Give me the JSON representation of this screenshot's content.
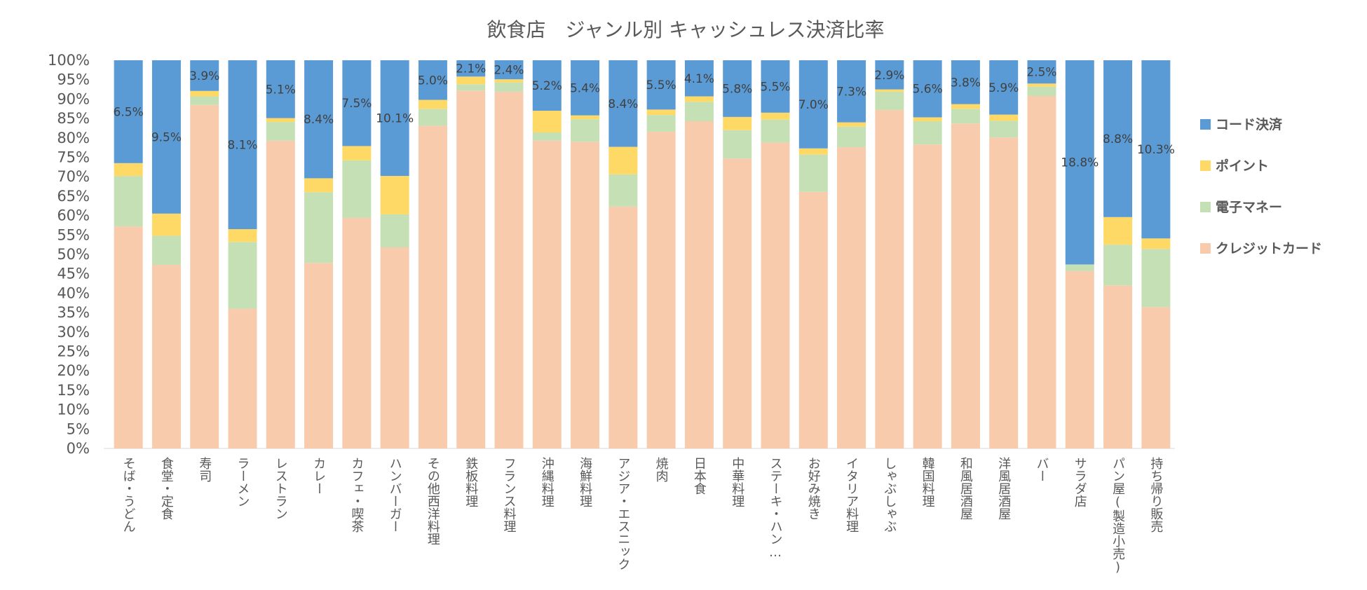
{
  "chart_data": {
    "type": "bar",
    "stacked": true,
    "percent_stacked": true,
    "title": "飲食店　ジャンル別 キャッシュレス決済比率",
    "xlabel": "",
    "ylabel": "",
    "ylim": [
      0,
      100
    ],
    "y_ticks": [
      "0%",
      "5%",
      "10%",
      "15%",
      "20%",
      "25%",
      "30%",
      "35%",
      "40%",
      "45%",
      "50%",
      "55%",
      "60%",
      "65%",
      "70%",
      "75%",
      "80%",
      "85%",
      "90%",
      "95%",
      "100%"
    ],
    "legend_position": "right",
    "categories": [
      "そば・うどん",
      "食堂・定食",
      "寿司",
      "ラーメン",
      "レストラン",
      "カレー",
      "カフェ・喫茶",
      "ハンバーガー",
      "その他西洋料理",
      "鉄板料理",
      "フランス料理",
      "沖縄料理",
      "海鮮料理",
      "アジア・エスニック",
      "焼肉",
      "日本食",
      "中華料理",
      "ステーキ・ハン…",
      "お好み焼き",
      "イタリア料理",
      "しゃぶしゃぶ",
      "韓国料理",
      "和風居酒屋",
      "洋風居酒屋",
      "バー",
      "サラダ店",
      "パン屋(製造小売)",
      "持ち帰り販売"
    ],
    "series": [
      {
        "name": "クレジットカード",
        "color": "#f8cbad",
        "values": [
          57.2,
          47.3,
          88.5,
          36.0,
          79.3,
          47.8,
          59.4,
          51.8,
          83.1,
          92.2,
          91.9,
          79.3,
          79.0,
          62.3,
          81.6,
          84.3,
          74.7,
          78.8,
          66.1,
          77.6,
          87.2,
          78.3,
          83.7,
          80.1,
          90.8,
          45.7,
          42.0,
          36.4
        ]
      },
      {
        "name": "電子マネー",
        "color": "#c5e0b4",
        "values": [
          13.0,
          7.5,
          2.2,
          17.2,
          4.8,
          18.2,
          14.8,
          8.5,
          4.4,
          1.6,
          2.4,
          2.1,
          5.8,
          8.3,
          4.3,
          5.0,
          7.3,
          5.9,
          9.6,
          5.3,
          4.7,
          6.0,
          3.8,
          4.3,
          2.4,
          1.7,
          10.5,
          15.0
        ]
      },
      {
        "name": "ポイント",
        "color": "#ffd966",
        "values": [
          3.3,
          5.7,
          1.4,
          3.3,
          1.0,
          3.6,
          3.7,
          9.9,
          2.3,
          2.0,
          0.8,
          5.6,
          1.0,
          7.1,
          1.4,
          1.4,
          3.4,
          1.8,
          1.6,
          1.1,
          0.6,
          1.0,
          1.2,
          1.6,
          0.8,
          0.0,
          7.1,
          2.7
        ]
      },
      {
        "name": "コード決済",
        "color": "#5b9bd5",
        "values": [
          26.5,
          39.5,
          7.9,
          43.5,
          14.9,
          30.4,
          22.1,
          29.8,
          10.2,
          4.2,
          4.9,
          13.0,
          14.2,
          22.3,
          12.7,
          9.3,
          14.6,
          13.5,
          22.7,
          16.0,
          7.5,
          14.7,
          11.3,
          14.0,
          6.0,
          52.6,
          40.4,
          45.9
        ]
      }
    ],
    "data_labels": [
      "6.5%",
      "9.5%",
      "3.9%",
      "8.1%",
      "5.1%",
      "8.4%",
      "7.5%",
      "10.1%",
      "5.0%",
      "2.1%",
      "2.4%",
      "5.2%",
      "5.4%",
      "8.4%",
      "5.5%",
      "4.1%",
      "5.8%",
      "5.5%",
      "7.0%",
      "7.3%",
      "2.9%",
      "5.6%",
      "3.8%",
      "5.9%",
      "2.5%",
      "18.8%",
      "8.8%",
      "10.3%"
    ],
    "legend": [
      "コード決済",
      "ポイント",
      "電子マネー",
      "クレジットカード"
    ]
  }
}
